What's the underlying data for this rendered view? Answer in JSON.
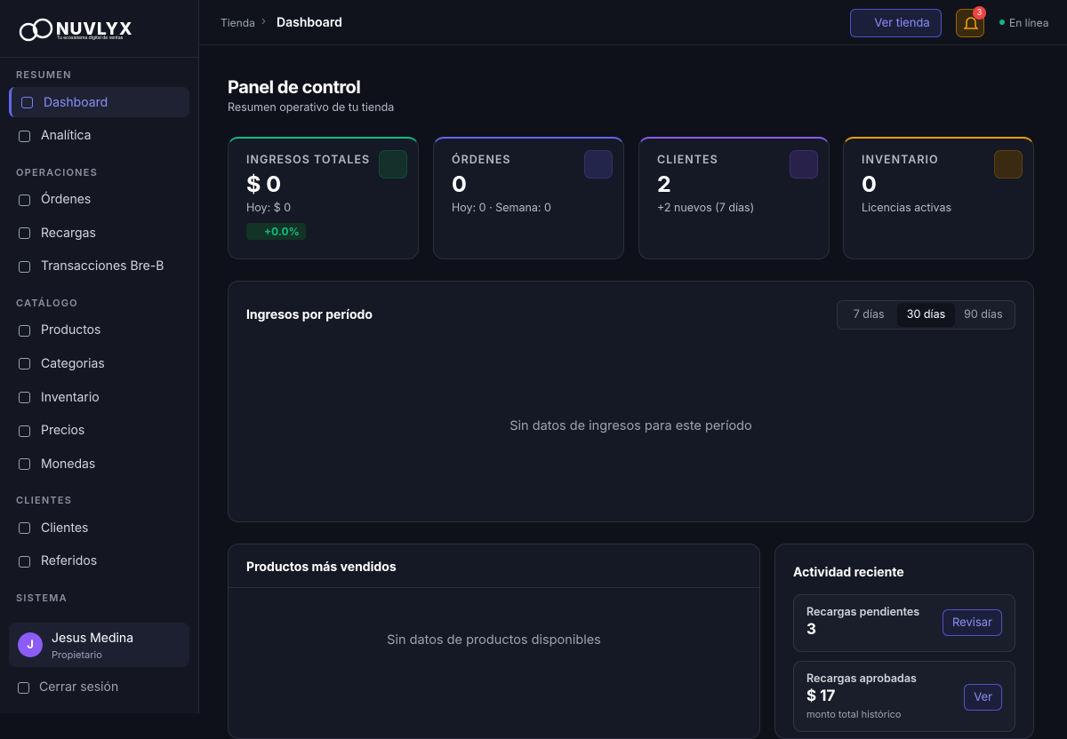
{
  "sidebar": {
    "brand": "NUVLYX",
    "tagline": "Tu ecosistema digital de ventas",
    "sections": [
      {
        "title": "RESUMEN",
        "items": [
          "Dashboard",
          "Analítica"
        ]
      },
      {
        "title": "OPERACIONES",
        "items": [
          "Órdenes",
          "Recargas",
          "Transacciones Bre-B"
        ]
      },
      {
        "title": "CATÁLOGO",
        "items": [
          "Productos",
          "Categorias",
          "Inventario",
          "Precios",
          "Monedas"
        ]
      },
      {
        "title": "CLIENTES",
        "items": [
          "Clientes",
          "Referidos"
        ]
      },
      {
        "title": "SISTEMA",
        "items": []
      }
    ],
    "user": {
      "initial": "J",
      "name": "Jesus Medina",
      "role": "Propietario"
    },
    "logout": "Cerrar sesión"
  },
  "topbar": {
    "breadcrumb": [
      "Tienda",
      "Dashboard"
    ],
    "store_button": "Ver tienda",
    "notifications": 3,
    "status": "En línea"
  },
  "page": {
    "title": "Panel de control",
    "subtitle": "Resumen operativo de tu tienda"
  },
  "stats": [
    {
      "label": "INGRESOS TOTALES",
      "value": "$ 0",
      "detail": "Hoy: $ 0",
      "change": "+0.0%"
    },
    {
      "label": "ÓRDENES",
      "value": "0",
      "detail": "Hoy: 0 · Semana: 0"
    },
    {
      "label": "CLIENTES",
      "value": "2",
      "detail": "+2 nuevos (7 días)"
    },
    {
      "label": "INVENTARIO",
      "value": "0",
      "detail": "Licencias activas"
    }
  ],
  "revenue_chart": {
    "title": "Ingresos por período",
    "ranges": [
      "7 días",
      "30 días",
      "90 días"
    ],
    "empty": "Sin datos de ingresos para este período"
  },
  "top_products": {
    "title": "Productos más vendidos",
    "empty": "Sin datos de productos disponibles"
  },
  "activity": {
    "title": "Actividad reciente",
    "items": [
      {
        "label": "Recargas pendientes",
        "value": "3",
        "action": "Revisar"
      },
      {
        "label": "Recargas aprobadas",
        "value": "$ 17",
        "note": "monto total histórico",
        "action": "Ver"
      }
    ]
  }
}
